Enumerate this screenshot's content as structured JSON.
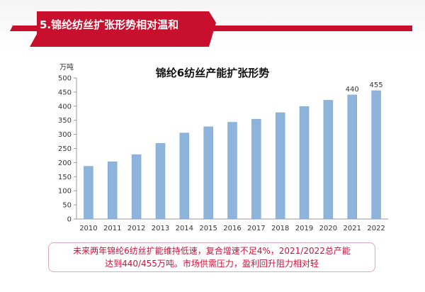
{
  "header": {
    "title": "5.锦纶纺丝扩张形势相对温和",
    "accent_color": "#c8102e"
  },
  "chart_data": {
    "type": "bar",
    "title": "锦纶6纺丝产能扩张形势",
    "ylabel": "万吨",
    "categories": [
      "2010",
      "2011",
      "2012",
      "2013",
      "2014",
      "2015",
      "2016",
      "2017",
      "2018",
      "2019",
      "2020",
      "2021",
      "2022"
    ],
    "values": [
      187,
      203,
      228,
      268,
      305,
      327,
      343,
      354,
      377,
      399,
      421,
      440,
      455
    ],
    "value_labels": [
      "",
      "",
      "",
      "",
      "",
      "",
      "",
      "",
      "",
      "",
      "",
      "440",
      "455"
    ],
    "yticks": [
      0,
      50,
      100,
      150,
      200,
      250,
      300,
      350,
      400,
      450,
      500
    ],
    "ylim": [
      0,
      500
    ],
    "bar_color": "#8fb4dc",
    "grid": false
  },
  "note": {
    "line1": "未来两年锦纶6纺丝扩能维持低速，复合增速不足4%，2021/2022总产能",
    "line2": "达到440/455万吨。市场供需压力，盈利回升阻力相对轻",
    "color": "#d0103a"
  }
}
